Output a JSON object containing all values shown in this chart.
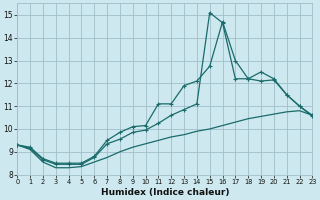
{
  "xlabel": "Humidex (Indice chaleur)",
  "xlim": [
    0,
    23
  ],
  "ylim": [
    8,
    15.5
  ],
  "xticks": [
    0,
    1,
    2,
    3,
    4,
    5,
    6,
    7,
    8,
    9,
    10,
    11,
    12,
    13,
    14,
    15,
    16,
    17,
    18,
    19,
    20,
    21,
    22,
    23
  ],
  "yticks": [
    8,
    9,
    10,
    11,
    12,
    13,
    14,
    15
  ],
  "bg_color": "#cde8ee",
  "grid_color": "#a0bfc8",
  "line_color": "#1a6b6b",
  "line1_x": [
    0,
    1,
    2,
    3,
    4,
    5,
    6,
    7,
    8,
    9,
    10,
    11,
    12,
    13,
    14,
    15,
    16,
    17,
    18,
    19,
    20,
    21,
    22,
    23
  ],
  "line1_y": [
    9.3,
    9.15,
    8.65,
    8.45,
    8.45,
    8.45,
    8.75,
    9.35,
    9.55,
    9.85,
    9.95,
    10.25,
    10.6,
    10.85,
    11.1,
    15.1,
    14.65,
    12.2,
    12.2,
    12.1,
    12.15,
    11.5,
    11.0,
    10.55
  ],
  "line2_x": [
    0,
    1,
    2,
    3,
    4,
    5,
    6,
    7,
    8,
    9,
    10,
    11,
    12,
    13,
    14,
    15,
    16,
    17,
    18,
    19,
    20,
    21,
    22,
    23
  ],
  "line2_y": [
    9.3,
    9.2,
    8.7,
    8.5,
    8.5,
    8.5,
    8.8,
    9.5,
    9.85,
    10.1,
    10.15,
    11.1,
    11.1,
    11.9,
    12.1,
    12.75,
    14.7,
    13.0,
    12.2,
    12.5,
    12.2,
    11.5,
    11.0,
    10.6
  ],
  "line3_x": [
    0,
    1,
    2,
    3,
    4,
    5,
    6,
    7,
    8,
    9,
    10,
    11,
    12,
    13,
    14,
    15,
    16,
    17,
    18,
    19,
    20,
    21,
    22,
    23
  ],
  "line3_y": [
    9.3,
    9.1,
    8.55,
    8.3,
    8.3,
    8.35,
    8.55,
    8.75,
    9.0,
    9.2,
    9.35,
    9.5,
    9.65,
    9.75,
    9.9,
    10.0,
    10.15,
    10.3,
    10.45,
    10.55,
    10.65,
    10.75,
    10.8,
    10.6
  ]
}
